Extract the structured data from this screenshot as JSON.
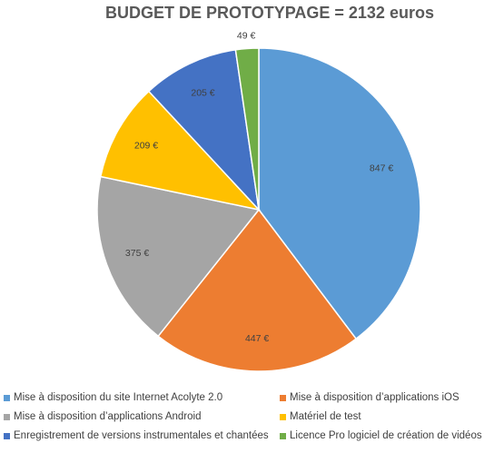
{
  "chart_data": {
    "type": "pie",
    "title": "BUDGET DE PROTOTYPAGE = 2132 euros",
    "unit": "€",
    "slices": [
      {
        "label": "Mise à disposition du site Internet Acolyte 2.0",
        "value": 847,
        "display": "847 €",
        "color": "#5B9BD5"
      },
      {
        "label": "Mise à disposition d’applications iOS",
        "value": 447,
        "display": "447 €",
        "color": "#ED7D31"
      },
      {
        "label": "Mise à disposition d’applications Android",
        "value": 375,
        "display": "375 €",
        "color": "#A5A5A5"
      },
      {
        "label": "Matériel de test",
        "value": 209,
        "display": "209 €",
        "color": "#FFC000"
      },
      {
        "label": "Enregistrement de versions instrumentales et chantées",
        "value": 205,
        "display": "205 €",
        "color": "#4472C4"
      },
      {
        "label": "Licence Pro logiciel de création de vidéos",
        "value": 49,
        "display": "49 €",
        "color": "#70AD47"
      }
    ],
    "legend_position": "bottom"
  }
}
